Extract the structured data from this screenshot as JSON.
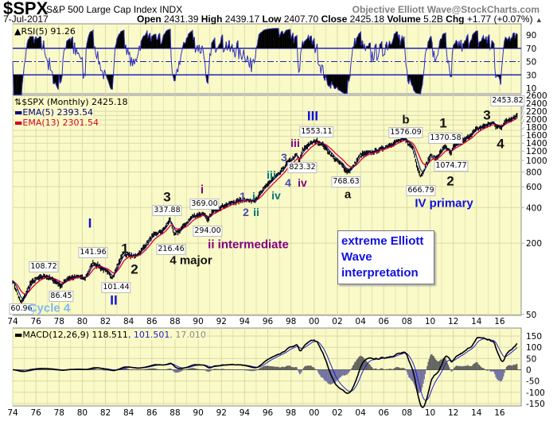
{
  "header": {
    "symbol": "$SPX",
    "name": "S&P 500 Large Cap Index  INDX",
    "credit": "Objective Elliott Wave@StockCharts.com",
    "date": "7-Jul-2017",
    "open_label": "Open",
    "open": "2431.39",
    "high_label": "High",
    "high": "2439.17",
    "low_label": "Low",
    "low": "2407.70",
    "close_label": "Close",
    "close": "2425.18",
    "volume_label": "Volume",
    "volume": "5.2B",
    "chg_label": "Chg",
    "chg": "+1.77 (+0.07%)",
    "chg_arrow": "▲"
  },
  "colors": {
    "panel_bg": "#fafac8",
    "grid": "#d9d9a6",
    "ema5": "#000080",
    "ema13": "#e00020",
    "rsi": "#3030c0",
    "macd": "#000000",
    "signal": "#2020d0",
    "hist_pos": "#606060",
    "hist_neg": "#7070a0"
  },
  "chart_data": {
    "type": "line",
    "title": "$SPX S&P 500 Large Cap Index (Monthly)",
    "price_legend": "$SPX (Monthly) 2425.18",
    "ema5_legend": "EMA(5) 2393.54",
    "ema13_legend": "EMA(13) 2301.54",
    "rsi_legend": "RSI(5) 91.26",
    "macd_legend": {
      "name": "MACD(12,26,9) 118.511",
      "signal": ", 101.501",
      "hist": ", 17.010"
    },
    "x_ticks": [
      "74",
      "76",
      "78",
      "80",
      "82",
      "84",
      "86",
      "88",
      "90",
      "92",
      "94",
      "96",
      "98",
      "00",
      "02",
      "04",
      "06",
      "08",
      "10",
      "12",
      "14",
      "16"
    ],
    "x_range": [
      1974,
      2017.6
    ],
    "price_scale": "log",
    "price_ticks": [
      2600,
      2400,
      2200,
      2000,
      1800,
      1600,
      1400,
      1200,
      1000,
      800,
      600,
      400,
      200,
      50
    ],
    "rsi_ticks": [
      90,
      70,
      50,
      30,
      10
    ],
    "rsi_lines": [
      70,
      50,
      30
    ],
    "macd_ticks": [
      150,
      100,
      50,
      0,
      -50,
      -100,
      -150
    ],
    "price_anchors": [
      [
        1974.0,
        97
      ],
      [
        1974.7,
        63
      ],
      [
        1975.0,
        70
      ],
      [
        1975.5,
        92
      ],
      [
        1976.0,
        100
      ],
      [
        1976.8,
        107
      ],
      [
        1977.5,
        98
      ],
      [
        1978.2,
        88
      ],
      [
        1978.7,
        102
      ],
      [
        1979.8,
        105
      ],
      [
        1980.2,
        100
      ],
      [
        1980.9,
        138
      ],
      [
        1981.5,
        128
      ],
      [
        1982.6,
        104
      ],
      [
        1983.5,
        165
      ],
      [
        1984.5,
        155
      ],
      [
        1985.0,
        170
      ],
      [
        1986.0,
        230
      ],
      [
        1987.0,
        260
      ],
      [
        1987.6,
        325
      ],
      [
        1987.9,
        235
      ],
      [
        1988.5,
        265
      ],
      [
        1989.5,
        340
      ],
      [
        1990.5,
        360
      ],
      [
        1990.8,
        306
      ],
      [
        1991.2,
        375
      ],
      [
        1992.0,
        410
      ],
      [
        1993.0,
        445
      ],
      [
        1994.0,
        475
      ],
      [
        1994.5,
        455
      ],
      [
        1995.0,
        480
      ],
      [
        1996.0,
        640
      ],
      [
        1997.0,
        780
      ],
      [
        1997.6,
        940
      ],
      [
        1998.5,
        1130
      ],
      [
        1998.7,
        970
      ],
      [
        1999.0,
        1230
      ],
      [
        1999.5,
        1370
      ],
      [
        2000.2,
        1480
      ],
      [
        2000.8,
        1350
      ],
      [
        2001.7,
        1050
      ],
      [
        2002.5,
        900
      ],
      [
        2002.8,
        815
      ],
      [
        2003.2,
        850
      ],
      [
        2004.0,
        1130
      ],
      [
        2005.0,
        1180
      ],
      [
        2006.0,
        1290
      ],
      [
        2007.0,
        1440
      ],
      [
        2007.8,
        1530
      ],
      [
        2008.5,
        1280
      ],
      [
        2008.9,
        900
      ],
      [
        2009.2,
        735
      ],
      [
        2010.0,
        1110
      ],
      [
        2010.5,
        1050
      ],
      [
        2011.3,
        1340
      ],
      [
        2011.8,
        1140
      ],
      [
        2012.0,
        1310
      ],
      [
        2013.0,
        1500
      ],
      [
        2014.0,
        1850
      ],
      [
        2015.4,
        2100
      ],
      [
        2015.7,
        1950
      ],
      [
        2016.1,
        1920
      ],
      [
        2016.5,
        2150
      ],
      [
        2017.5,
        2425
      ]
    ],
    "price_labels": [
      "141.96",
      "108.72",
      "86.45",
      "101.44",
      "60.96",
      "337.88",
      "216.46",
      "369.00",
      "294.00",
      "823.32",
      "1553.11",
      "768.63",
      "1576.09",
      "1370.58",
      "1074.77",
      "666.79",
      "2453.82"
    ],
    "wave_labels": {
      "I": "I",
      "II": "II",
      "cycle4": "Cycle 4",
      "w1": "1",
      "w2": "2",
      "w3": "3",
      "w4major": "4 major",
      "i": "i",
      "ii_int": "ii intermediate",
      "s1": "1",
      "t_i": "i",
      "s2": "2",
      "t_ii": "ii",
      "t_iii": "iii",
      "t_iv": "iv",
      "s3": "3",
      "p_iii": "iii",
      "s4": "4",
      "p_iv": "iv",
      "III": "III",
      "a": "a",
      "b": "b",
      "n1": "1",
      "n2": "2",
      "IVp": "IV primary",
      "n3": "3",
      "n4": "4"
    },
    "note": "extreme Elliott Wave interpretation"
  }
}
